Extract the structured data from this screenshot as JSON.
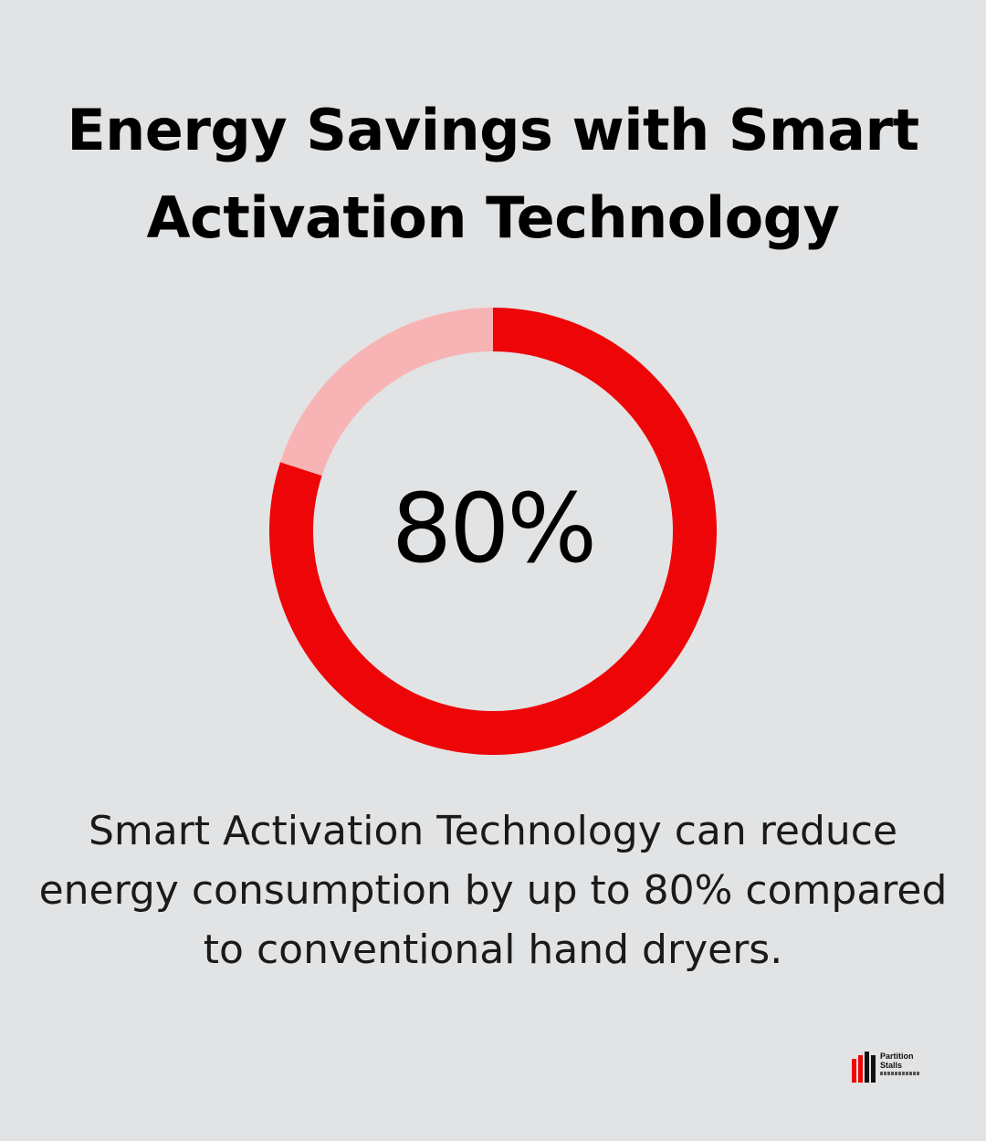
{
  "title_lines": [
    "Energy Savings with Smart",
    "Activation Technology"
  ],
  "description_lines": [
    "Smart Activation Technology can reduce",
    "energy consumption by up to 80% compared",
    "to conventional hand dryers."
  ],
  "logo": {
    "line1": "Partition",
    "line2": "Stalls"
  },
  "colors": {
    "background": "#e2e3e4",
    "primary": "#ee0508",
    "remainder": "#f8b4b4",
    "text": "#000000"
  },
  "chart_data": {
    "type": "pie",
    "center_label": "80%",
    "values": [
      80,
      20
    ]
  }
}
